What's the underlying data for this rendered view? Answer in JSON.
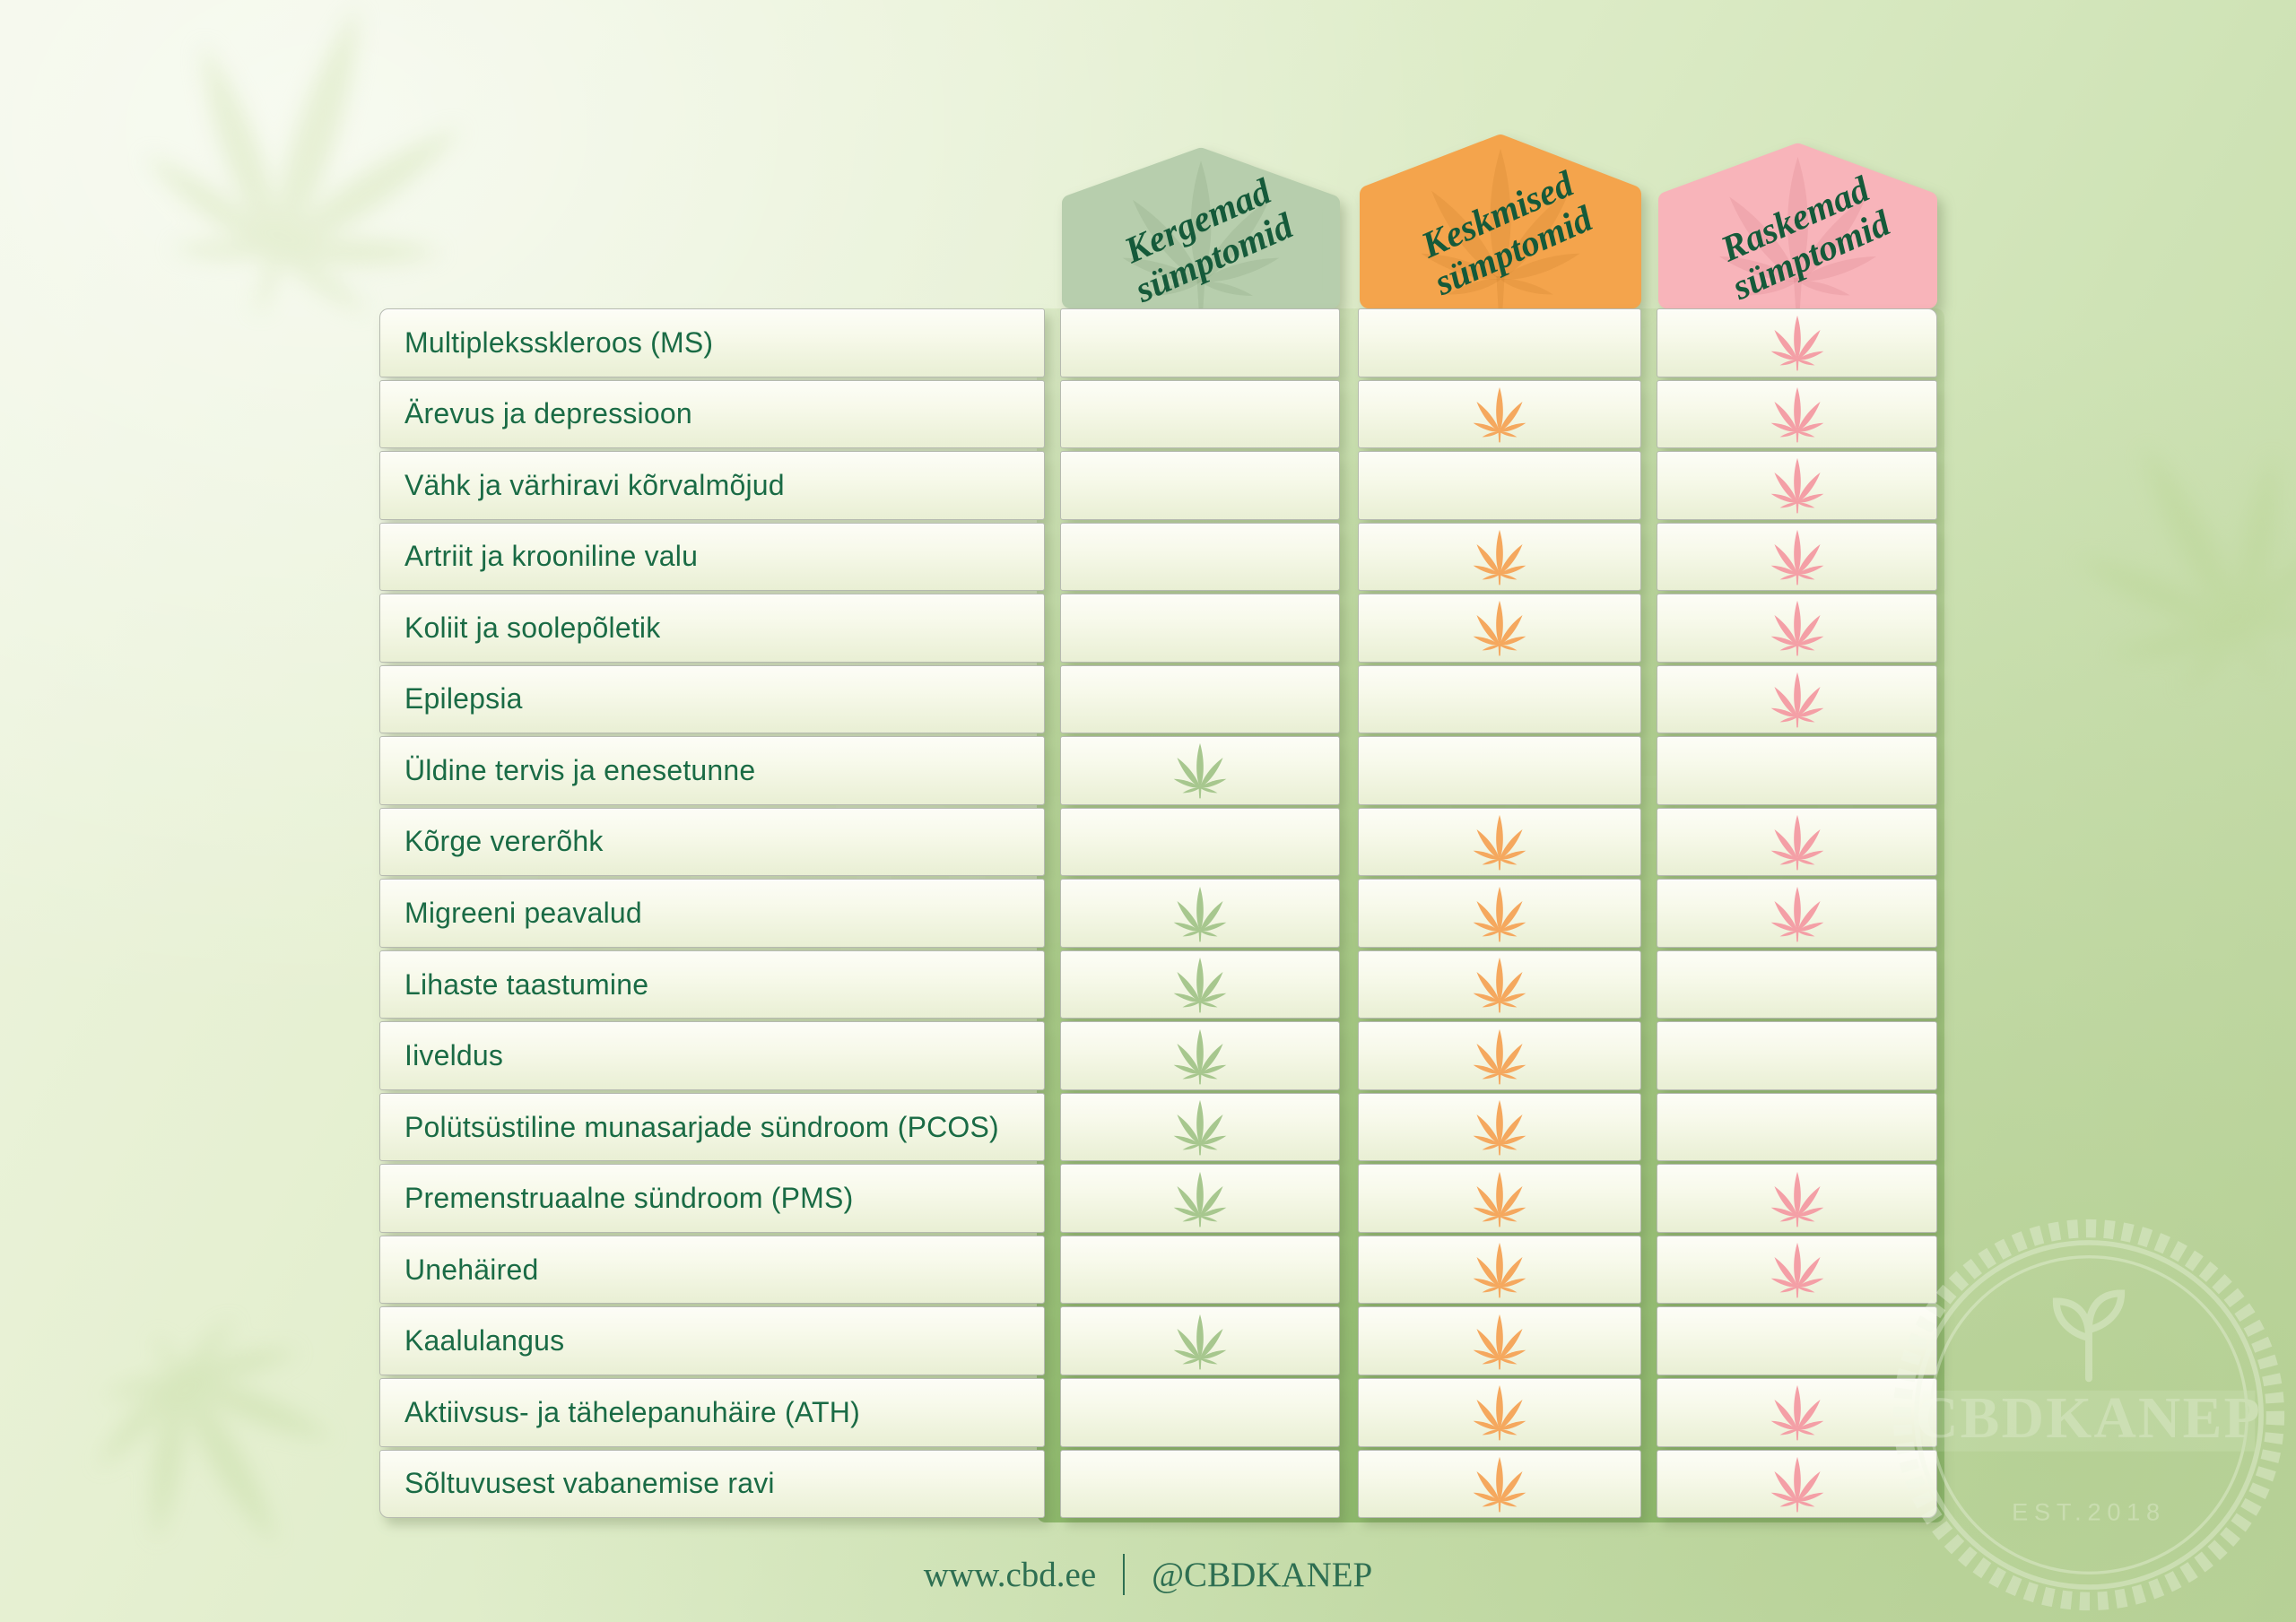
{
  "table": {
    "columns": [
      {
        "id": "mild",
        "label": "Kergemad sümptomid",
        "header_color": "#b7cead",
        "header_edge": "#aec7a3",
        "leaf_color": "#a7c78e"
      },
      {
        "id": "medium",
        "label": "Keskmised sümptomid",
        "header_color": "#f4a44c",
        "header_edge": "#f09c40",
        "leaf_color": "#f5a85e"
      },
      {
        "id": "severe",
        "label": "Raskemad sümptomid",
        "header_color": "#f8b4ba",
        "header_edge": "#f5a8b0",
        "leaf_color": "#f49fa6"
      }
    ],
    "rows": [
      {
        "label": "Multipleksskleroos (MS)",
        "mild": false,
        "medium": false,
        "severe": true
      },
      {
        "label": "Ärevus ja depressioon",
        "mild": false,
        "medium": true,
        "severe": true
      },
      {
        "label": "Vähk ja värhiravi kõrvalmõjud",
        "mild": false,
        "medium": false,
        "severe": true
      },
      {
        "label": "Artriit ja krooniline valu",
        "mild": false,
        "medium": true,
        "severe": true
      },
      {
        "label": "Koliit ja soolepõletik",
        "mild": false,
        "medium": true,
        "severe": true
      },
      {
        "label": "Epilepsia",
        "mild": false,
        "medium": false,
        "severe": true
      },
      {
        "label": "Üldine tervis ja enesetunne",
        "mild": true,
        "medium": false,
        "severe": false
      },
      {
        "label": "Kõrge vererõhk",
        "mild": false,
        "medium": true,
        "severe": true
      },
      {
        "label": "Migreeni peavalud",
        "mild": true,
        "medium": true,
        "severe": true
      },
      {
        "label": "Lihaste taastumine",
        "mild": true,
        "medium": true,
        "severe": false
      },
      {
        "label": "Iiveldus",
        "mild": true,
        "medium": true,
        "severe": false
      },
      {
        "label": "Polütsüstiline munasarjade sündroom (PCOS)",
        "mild": true,
        "medium": true,
        "severe": false
      },
      {
        "label": "Premenstruaalne sündroom (PMS)",
        "mild": true,
        "medium": true,
        "severe": true
      },
      {
        "label": "Unehäired",
        "mild": false,
        "medium": true,
        "severe": true
      },
      {
        "label": "Kaalulangus",
        "mild": true,
        "medium": true,
        "severe": false
      },
      {
        "label": "Aktiivsus- ja tähelepanuhäire (ATH)",
        "mild": false,
        "medium": true,
        "severe": true
      },
      {
        "label": "Sõltuvusest vabanemise ravi",
        "mild": false,
        "medium": true,
        "severe": true
      }
    ]
  },
  "footer": {
    "website": "www.cbd.ee",
    "separator": "|",
    "handle": "@CBDKANEP"
  },
  "stamp": {
    "brand": "CBDKANEP",
    "established": "EST.2018"
  },
  "icons": {
    "cell_marker": "cannabis-leaf-icon"
  },
  "colors": {
    "label_text": "#1a6b45",
    "header_text": "#155a3a",
    "footer_text": "#2e6f52",
    "cell_border": "#b6bab0",
    "backing_stripe": "#8eb96c"
  }
}
